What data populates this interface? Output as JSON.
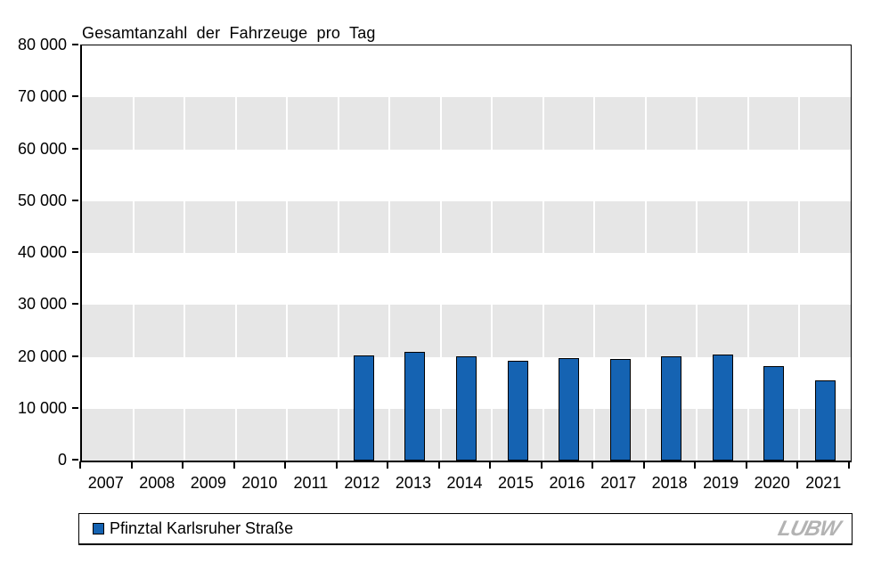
{
  "title": "Gesamtanzahl der Fahrzeuge pro Tag",
  "colors": {
    "bar": "#1563B2",
    "band_gray": "#E6E6E6",
    "axis": "#000000",
    "logo_gray": "#B3B3B3"
  },
  "legend": {
    "label": "Pfinztal Karlsruher Straße",
    "swatch_color": "#1563B2"
  },
  "logo_text": "LUBW",
  "chart_data": {
    "type": "bar",
    "title": "Gesamtanzahl der Fahrzeuge pro Tag",
    "categories": [
      "2007",
      "2008",
      "2009",
      "2010",
      "2011",
      "2012",
      "2013",
      "2014",
      "2015",
      "2016",
      "2017",
      "2018",
      "2019",
      "2020",
      "2021"
    ],
    "series": [
      {
        "name": "Pfinztal Karlsruher Straße",
        "values": [
          null,
          null,
          null,
          null,
          null,
          20300,
          20900,
          20100,
          19200,
          19800,
          19500,
          20100,
          20500,
          18200,
          15500
        ]
      }
    ],
    "xlabel": "",
    "ylabel": "",
    "ylim": [
      0,
      80000
    ],
    "ytick_step": 10000,
    "ytick_labels": [
      "0",
      "10 000",
      "20 000",
      "30 000",
      "40 000",
      "50 000",
      "60 000",
      "70 000",
      "80 000"
    ],
    "grid": "horizontal-bands-alternating",
    "vertical_gridlines": "white-at-category-boundaries",
    "legend_position": "bottom"
  }
}
